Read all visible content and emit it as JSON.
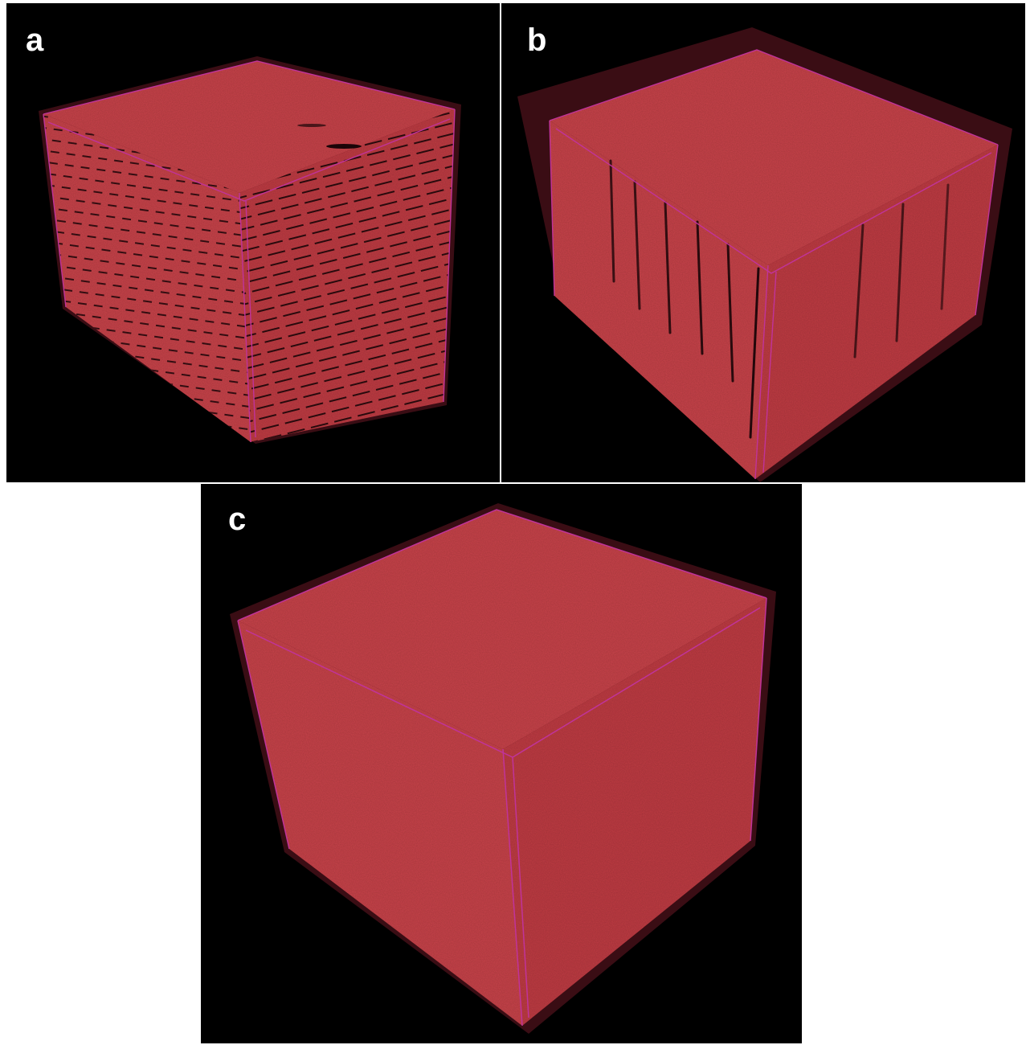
{
  "panels": [
    {
      "id": "a",
      "label": "a"
    },
    {
      "id": "b",
      "label": "b"
    },
    {
      "id": "c",
      "label": "c"
    }
  ],
  "colors": {
    "background": "#000000",
    "volume_fill": "#c8444b",
    "volume_fill_dark": "#a9343b",
    "volume_shell": "#3a0d14",
    "edge_line": "#c0339a",
    "defect": "#1a0508"
  }
}
